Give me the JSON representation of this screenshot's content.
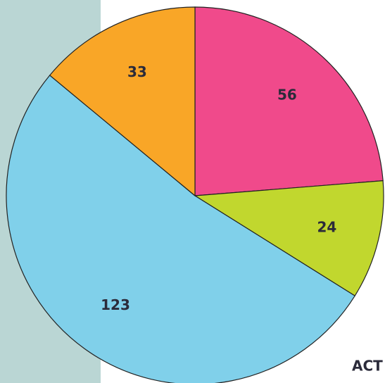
{
  "chart_data": {
    "type": "pie",
    "values": [
      56,
      24,
      123,
      33
    ],
    "colors": [
      "#f04a8b",
      "#c1d72e",
      "#80d0ea",
      "#f9a627"
    ],
    "caption": "ACT"
  }
}
